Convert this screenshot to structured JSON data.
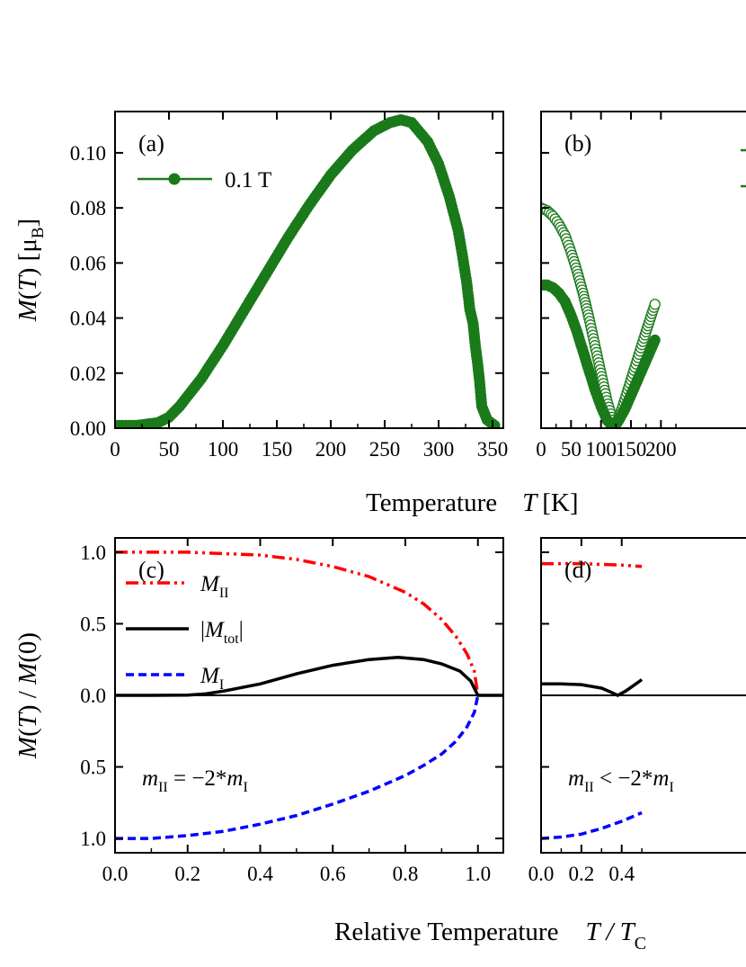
{
  "figure": {
    "xlabel_top": "Temperature",
    "xlabel_top_symbol": "T",
    "xlabel_top_unit": "[K]",
    "xlabel_bottom": "Relative Temperature",
    "xlabel_bottom_symbol": "T / T",
    "xlabel_bottom_subscript": "C"
  },
  "chart_data": [
    {
      "panel": "(a)",
      "type": "line",
      "ylabel": "M(T) [μB]",
      "xlim": [
        0,
        360
      ],
      "ylim": [
        0.0,
        0.115
      ],
      "x_ticks": [
        "0",
        "50",
        "100",
        "150",
        "200",
        "250",
        "300",
        "350"
      ],
      "x_tick_values": [
        0,
        50,
        100,
        150,
        200,
        250,
        300,
        350
      ],
      "y_ticks": [
        "0.00",
        "0.02",
        "0.04",
        "0.06",
        "0.08",
        "0.10"
      ],
      "y_tick_values": [
        0.0,
        0.02,
        0.04,
        0.06,
        0.08,
        0.1
      ],
      "legend_position": "top-left",
      "series": [
        {
          "name": "0.1 T",
          "color": "#1a7a1a",
          "marker": "filled-circle",
          "x": [
            0,
            20,
            40,
            50,
            60,
            80,
            100,
            120,
            140,
            160,
            180,
            200,
            220,
            240,
            255,
            265,
            275,
            290,
            300,
            310,
            318,
            322,
            326,
            329,
            332,
            334,
            336,
            338,
            340,
            345,
            352
          ],
          "y": [
            0.001,
            0.001,
            0.002,
            0.004,
            0.008,
            0.018,
            0.03,
            0.043,
            0.056,
            0.069,
            0.081,
            0.092,
            0.101,
            0.108,
            0.111,
            0.112,
            0.111,
            0.104,
            0.096,
            0.084,
            0.072,
            0.063,
            0.053,
            0.043,
            0.038,
            0.03,
            0.024,
            0.017,
            0.008,
            0.003,
            0.001
          ]
        }
      ]
    },
    {
      "panel": "(b)",
      "type": "line",
      "xlim": [
        0,
        360
      ],
      "ylim": [
        0.0,
        0.115
      ],
      "x_ticks": [
        "0",
        "50",
        "100",
        "150",
        "200"
      ],
      "x_tick_values": [
        0,
        50,
        100,
        150,
        200
      ],
      "legend_position": "top-right",
      "series": [
        {
          "color": "#1a7a1a",
          "marker": "open-circle",
          "x": [
            0,
            10,
            20,
            30,
            40,
            50,
            60,
            70,
            80,
            90,
            100,
            110,
            118,
            124,
            128,
            135,
            145,
            155,
            165,
            175,
            190
          ],
          "y": [
            0.08,
            0.079,
            0.077,
            0.074,
            0.07,
            0.064,
            0.057,
            0.049,
            0.04,
            0.03,
            0.02,
            0.01,
            0.004,
            0.002,
            0.003,
            0.007,
            0.014,
            0.021,
            0.028,
            0.035,
            0.045
          ]
        },
        {
          "color": "#1a7a1a",
          "marker": "filled-circle",
          "x": [
            0,
            10,
            20,
            30,
            40,
            50,
            60,
            70,
            80,
            90,
            100,
            110,
            118,
            124,
            130,
            140,
            150,
            160,
            170,
            180,
            190
          ],
          "y": [
            0.052,
            0.052,
            0.051,
            0.049,
            0.046,
            0.041,
            0.035,
            0.028,
            0.021,
            0.014,
            0.008,
            0.003,
            0.001,
            0.001,
            0.003,
            0.007,
            0.012,
            0.017,
            0.022,
            0.027,
            0.032
          ]
        }
      ]
    },
    {
      "panel": "(c)",
      "type": "line",
      "ylabel": "M(T) / M(0)",
      "xlim": [
        0,
        1.07
      ],
      "ylim": [
        -1.1,
        1.1
      ],
      "x_ticks": [
        "0.0",
        "0.2",
        "0.4",
        "0.6",
        "0.8",
        "1.0"
      ],
      "x_tick_values": [
        0,
        0.2,
        0.4,
        0.6,
        0.8,
        1.0
      ],
      "y_ticks": [
        "1.0",
        "0.5",
        "0.0",
        "0.5",
        "1.0"
      ],
      "y_tick_values": [
        1.0,
        0.5,
        0.0,
        -0.5,
        -1.0
      ],
      "annotation": {
        "m1": "m",
        "m1_sub": "II",
        "relation": " = −2*",
        "m2": "m",
        "m2_sub": "I"
      },
      "legend_position": "top-left",
      "series": [
        {
          "name": "M",
          "name_sub": "II",
          "color": "#ff0000",
          "style": "dash-dot-dot",
          "x": [
            0,
            0.1,
            0.2,
            0.3,
            0.4,
            0.5,
            0.6,
            0.7,
            0.8,
            0.85,
            0.9,
            0.94,
            0.97,
            0.99,
            1.0
          ],
          "y": [
            1.0,
            1.0,
            1.0,
            0.99,
            0.98,
            0.95,
            0.9,
            0.83,
            0.72,
            0.64,
            0.53,
            0.41,
            0.29,
            0.17,
            0.0
          ]
        },
        {
          "name": "|M",
          "name_sub": "tot",
          "name_end": "|",
          "color": "#000000",
          "style": "solid",
          "x": [
            0,
            0.1,
            0.2,
            0.25,
            0.3,
            0.4,
            0.5,
            0.6,
            0.7,
            0.78,
            0.85,
            0.9,
            0.95,
            0.98,
            1.0,
            1.07
          ],
          "y": [
            0.0,
            0.0,
            0.002,
            0.01,
            0.03,
            0.08,
            0.15,
            0.21,
            0.25,
            0.265,
            0.25,
            0.22,
            0.17,
            0.1,
            0.0,
            0.0
          ]
        },
        {
          "name": "M",
          "name_sub": "I",
          "color": "#0000ff",
          "style": "dashed",
          "x": [
            0,
            0.1,
            0.2,
            0.3,
            0.4,
            0.5,
            0.6,
            0.7,
            0.8,
            0.85,
            0.9,
            0.94,
            0.97,
            0.99,
            1.0
          ],
          "y": [
            -1.0,
            -1.0,
            -0.98,
            -0.95,
            -0.9,
            -0.84,
            -0.76,
            -0.67,
            -0.56,
            -0.49,
            -0.41,
            -0.32,
            -0.22,
            -0.12,
            0.0
          ]
        }
      ]
    },
    {
      "panel": "(d)",
      "type": "line",
      "xlim": [
        0,
        1.07
      ],
      "ylim": [
        -1.1,
        1.1
      ],
      "x_ticks": [
        "0.0",
        "0.2",
        "0.4"
      ],
      "x_tick_values": [
        0,
        0.2,
        0.4
      ],
      "annotation": {
        "m1": "m",
        "m1_sub": "II",
        "relation": " < −2*",
        "m2": "m",
        "m2_sub": "I"
      },
      "series": [
        {
          "color": "#ff0000",
          "style": "dash-dot-dot",
          "x": [
            0,
            0.1,
            0.2,
            0.3,
            0.4,
            0.5
          ],
          "y": [
            0.92,
            0.92,
            0.92,
            0.915,
            0.91,
            0.9
          ]
        },
        {
          "color": "#000000",
          "style": "solid",
          "x": [
            0,
            0.1,
            0.2,
            0.3,
            0.35,
            0.38,
            0.42,
            0.47,
            0.5
          ],
          "y": [
            0.08,
            0.08,
            0.075,
            0.05,
            0.02,
            0.0,
            0.03,
            0.08,
            0.11
          ]
        },
        {
          "color": "#0000ff",
          "style": "dashed",
          "x": [
            0,
            0.1,
            0.2,
            0.3,
            0.4,
            0.5
          ],
          "y": [
            -1.0,
            -0.99,
            -0.97,
            -0.93,
            -0.88,
            -0.82
          ]
        }
      ]
    }
  ]
}
